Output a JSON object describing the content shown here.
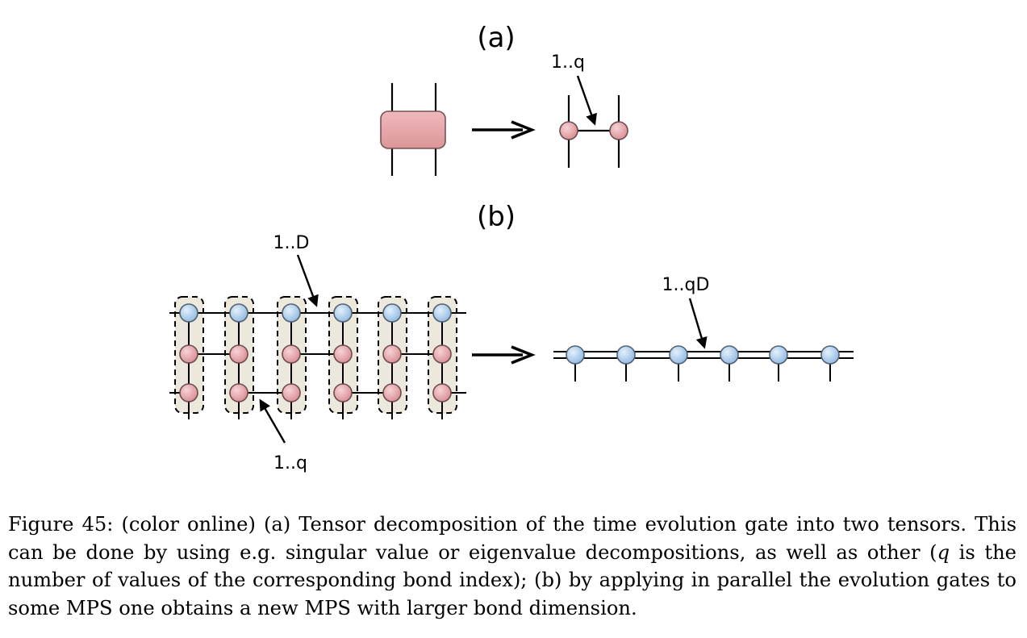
{
  "figure": {
    "panel_a_label": "(a)",
    "panel_b_label": "(b)",
    "annotations": {
      "a_bond": "1..q",
      "b_mps_bond": "1..D",
      "b_gate_bond": "1..q",
      "b_new_bond": "1..qD"
    },
    "colors": {
      "gate_fill": "#e4a2a5",
      "gate_stroke": "#8a5a5a",
      "pink_node": "#d98c93",
      "blue_node": "#9ec3e8",
      "group_fill": "#ece8dc"
    },
    "mps_sites": 6
  },
  "caption": {
    "label": "Figure 45:",
    "seg1": "(color online) (a) Tensor decomposition of the time evolution gate into two tensors. This can be done by using e.g. singular value or eigenvalue decompositions, as well as other (",
    "var_q": "q",
    "seg2": "is the number of values of the corresponding bond index); (b) by applying in parallel the evolution gates to some MPS one obtains a new MPS with larger bond dimension."
  }
}
